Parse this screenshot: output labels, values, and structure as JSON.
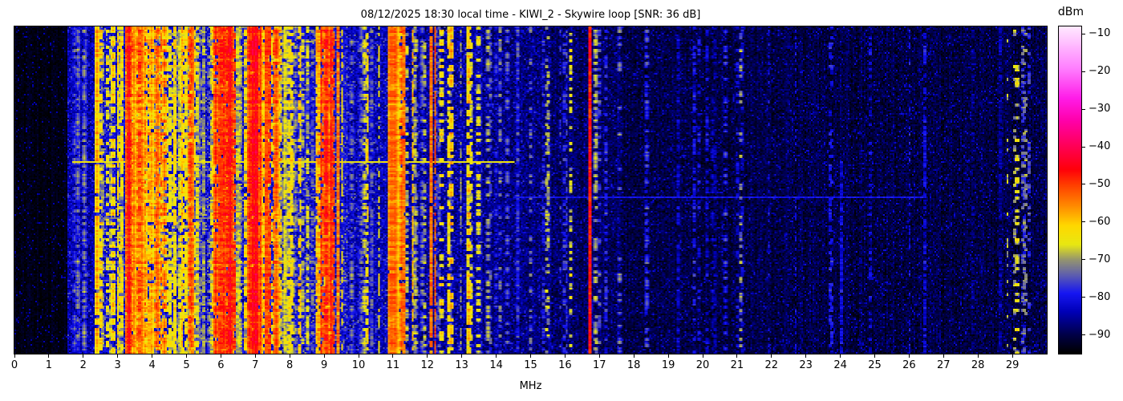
{
  "chart_data": {
    "type": "heatmap",
    "title": "08/12/2025 18:30 local time - KIWI_2 - Skywire loop [SNR: 36 dB]",
    "xlabel": "MHz",
    "x_range": [
      0,
      30
    ],
    "x_ticks": [
      0,
      1,
      2,
      3,
      4,
      5,
      6,
      7,
      8,
      9,
      10,
      11,
      12,
      13,
      14,
      15,
      16,
      17,
      18,
      19,
      20,
      21,
      22,
      23,
      24,
      25,
      26,
      27,
      28,
      29
    ],
    "y_axis_ticks": [],
    "value_range_dbm": [
      -95,
      -8
    ],
    "grid": false,
    "legend": "none",
    "colorbar": {
      "label": "dBm",
      "ticks": [
        -10,
        -20,
        -30,
        -40,
        -50,
        -60,
        -70,
        -80,
        -90
      ],
      "position": "right"
    },
    "colormap_stops": [
      [
        -95,
        "#000000"
      ],
      [
        -90,
        "#000048"
      ],
      [
        -84,
        "#0000b6"
      ],
      [
        -79,
        "#1616f2"
      ],
      [
        -74,
        "#6060ac"
      ],
      [
        -70,
        "#96966e"
      ],
      [
        -66,
        "#e8e812"
      ],
      [
        -61,
        "#ffd800"
      ],
      [
        -56,
        "#ff8e00"
      ],
      [
        -50,
        "#ff3c00"
      ],
      [
        -46,
        "#ff000a"
      ],
      [
        -40,
        "#ff0054"
      ],
      [
        -33,
        "#ff00aa"
      ],
      [
        -27,
        "#ff1ce8"
      ],
      [
        -19,
        "#ff80ff"
      ],
      [
        -8,
        "#ffe8ff"
      ]
    ],
    "seed": 20250812,
    "noise_floor_bands": [
      {
        "from": 0.0,
        "to": 1.52,
        "base": -93.5,
        "var": 1.5,
        "spk_p": 0.05,
        "spk": -86
      },
      {
        "from": 1.52,
        "to": 2.45,
        "base": -84.5,
        "var": 4.0,
        "spk_p": 0.06,
        "spk": -77
      },
      {
        "from": 2.45,
        "to": 9.7,
        "base": -81.0,
        "var": 5.0,
        "spk_p": 0.08,
        "spk": -71
      },
      {
        "from": 9.7,
        "to": 11.4,
        "base": -83.5,
        "var": 4.5,
        "spk_p": 0.07,
        "spk": -74
      },
      {
        "from": 11.4,
        "to": 13.6,
        "base": -85.0,
        "var": 4.5,
        "spk_p": 0.06,
        "spk": -76
      },
      {
        "from": 13.6,
        "to": 15.6,
        "base": -87.0,
        "var": 4.0,
        "spk_p": 0.05,
        "spk": -79
      },
      {
        "from": 15.6,
        "to": 17.6,
        "base": -88.5,
        "var": 3.5,
        "spk_p": 0.05,
        "spk": -81
      },
      {
        "from": 17.6,
        "to": 30.0,
        "base": -90.5,
        "var": 3.0,
        "spk_p": 0.06,
        "spk": -83
      }
    ],
    "activity_regions": [
      {
        "from": 1.6,
        "to": 2.45,
        "count": 10,
        "lmin": -82,
        "lmax": -72,
        "duty": 0.55
      },
      {
        "from": 2.45,
        "to": 3.25,
        "count": 14,
        "lmin": -75,
        "lmax": -57,
        "duty": 0.6
      },
      {
        "from": 3.25,
        "to": 3.75,
        "count": 16,
        "lmin": -64,
        "lmax": -45,
        "duty": 0.78
      },
      {
        "from": 3.75,
        "to": 4.35,
        "count": 14,
        "lmin": -70,
        "lmax": -52,
        "duty": 0.65
      },
      {
        "from": 4.35,
        "to": 4.8,
        "count": 9,
        "lmin": -76,
        "lmax": -58,
        "duty": 0.5
      },
      {
        "from": 4.8,
        "to": 5.25,
        "count": 11,
        "lmin": -66,
        "lmax": -50,
        "duty": 0.7
      },
      {
        "from": 5.25,
        "to": 5.8,
        "count": 11,
        "lmin": -73,
        "lmax": -56,
        "duty": 0.6
      },
      {
        "from": 5.8,
        "to": 6.4,
        "count": 16,
        "lmin": -62,
        "lmax": -44,
        "duty": 0.8
      },
      {
        "from": 6.4,
        "to": 6.78,
        "count": 9,
        "lmin": -70,
        "lmax": -54,
        "duty": 0.6
      },
      {
        "from": 6.78,
        "to": 7.15,
        "count": 10,
        "lmin": -55,
        "lmax": -44,
        "duty": 0.9
      },
      {
        "from": 7.15,
        "to": 7.65,
        "count": 13,
        "lmin": -62,
        "lmax": -46,
        "duty": 0.75
      },
      {
        "from": 7.65,
        "to": 8.3,
        "count": 12,
        "lmin": -73,
        "lmax": -55,
        "duty": 0.55
      },
      {
        "from": 8.3,
        "to": 8.8,
        "count": 8,
        "lmin": -78,
        "lmax": -62,
        "duty": 0.45
      },
      {
        "from": 8.8,
        "to": 9.5,
        "count": 16,
        "lmin": -62,
        "lmax": -45,
        "duty": 0.8
      },
      {
        "from": 9.5,
        "to": 10.75,
        "count": 10,
        "lmin": -77,
        "lmax": -60,
        "duty": 0.5
      },
      {
        "from": 10.75,
        "to": 11.25,
        "count": 11,
        "lmin": -64,
        "lmax": -52,
        "duty": 0.8
      },
      {
        "from": 11.25,
        "to": 12.3,
        "count": 10,
        "lmin": -75,
        "lmax": -55,
        "duty": 0.5
      },
      {
        "from": 12.3,
        "to": 13.5,
        "count": 10,
        "lmin": -77,
        "lmax": -58,
        "duty": 0.45
      },
      {
        "from": 13.5,
        "to": 15.65,
        "count": 12,
        "lmin": -82,
        "lmax": -66,
        "duty": 0.4
      },
      {
        "from": 15.65,
        "to": 17.55,
        "count": 8,
        "lmin": -82,
        "lmax": -68,
        "duty": 0.4
      },
      {
        "from": 17.55,
        "to": 21.5,
        "count": 10,
        "lmin": -85,
        "lmax": -73,
        "duty": 0.35
      },
      {
        "from": 21.5,
        "to": 26.5,
        "count": 8,
        "lmin": -86,
        "lmax": -76,
        "duty": 0.3
      },
      {
        "from": 28.7,
        "to": 29.5,
        "count": 6,
        "lmin": -76,
        "lmax": -64,
        "duty": 0.25
      }
    ],
    "signals": [
      {
        "mhz": 2.4,
        "level": -58,
        "duty": 0.9,
        "width": 0.05
      },
      {
        "mhz": 3.33,
        "level": -46,
        "duty": 0.95,
        "width": 0.07
      },
      {
        "mhz": 5.0,
        "level": -60,
        "duty": 0.85,
        "width": 0.04
      },
      {
        "mhz": 6.0,
        "level": -46,
        "duty": 0.9,
        "width": 0.06
      },
      {
        "mhz": 6.9,
        "level": -45,
        "duty": 0.97,
        "width": 0.09
      },
      {
        "mhz": 7.3,
        "level": -48,
        "duty": 0.92,
        "width": 0.06
      },
      {
        "mhz": 9.1,
        "level": -47,
        "duty": 0.9,
        "width": 0.06
      },
      {
        "mhz": 9.4,
        "level": -50,
        "duty": 0.85,
        "width": 0.05
      },
      {
        "mhz": 10.6,
        "level": -64,
        "duty": 0.5,
        "width": 0.04
      },
      {
        "mhz": 10.98,
        "level": -54,
        "duty": 0.95,
        "width": 0.22
      },
      {
        "mhz": 11.31,
        "level": -50,
        "duty": 0.95,
        "width": 0.04
      },
      {
        "mhz": 12.13,
        "level": -50,
        "duty": 0.9,
        "width": 0.04
      },
      {
        "mhz": 12.23,
        "level": -52,
        "duty": 0.85,
        "width": 0.04
      },
      {
        "mhz": 13.18,
        "level": -62,
        "duty": 0.6,
        "width": 0.05
      },
      {
        "mhz": 13.29,
        "level": -63,
        "duty": 0.55,
        "width": 0.04
      },
      {
        "mhz": 14.62,
        "level": -73,
        "duty": 0.5,
        "width": 0.04
      },
      {
        "mhz": 16.16,
        "level": -63,
        "duty": 0.45,
        "width": 0.04
      },
      {
        "mhz": 16.71,
        "level": -43,
        "duty": 1.0,
        "width": 0.05
      },
      {
        "mhz": 17.18,
        "level": -75,
        "duty": 0.5,
        "width": 0.04
      },
      {
        "mhz": 19.3,
        "level": -80,
        "duty": 0.6,
        "width": 0.05
      },
      {
        "mhz": 20.35,
        "level": -82,
        "duty": 0.5,
        "width": 0.04
      },
      {
        "mhz": 21.1,
        "level": -68,
        "duty": 0.3,
        "width": 0.04
      },
      {
        "mhz": 24.02,
        "level": -78,
        "duty": 0.85,
        "width": 0.04,
        "y_from": 0.4
      },
      {
        "mhz": 26.45,
        "level": -78,
        "duty": 0.65,
        "width": 0.04
      },
      {
        "mhz": 27.87,
        "level": -84,
        "duty": 0.5,
        "width": 0.04
      },
      {
        "mhz": 28.65,
        "level": -82,
        "duty": 0.8,
        "width": 0.04
      },
      {
        "mhz": 29.07,
        "level": -66,
        "duty": 0.28,
        "width": 0.04
      },
      {
        "mhz": 29.3,
        "level": -72,
        "duty": 0.45,
        "width": 0.04
      }
    ],
    "events": [
      {
        "y_frac": 0.415,
        "from": 1.7,
        "to": 14.5,
        "level": -65
      },
      {
        "y_frac": 0.52,
        "from": 14.5,
        "to": 26.5,
        "level": -80
      },
      {
        "y_frac": 0.585,
        "from": 2.6,
        "to": 9.6,
        "level": -72
      },
      {
        "y_frac": 0.78,
        "from": 2.5,
        "to": 9.5,
        "level": -75
      }
    ]
  },
  "colors": {
    "background": "#ffffff",
    "text": "#000000",
    "frame": "#000000"
  }
}
